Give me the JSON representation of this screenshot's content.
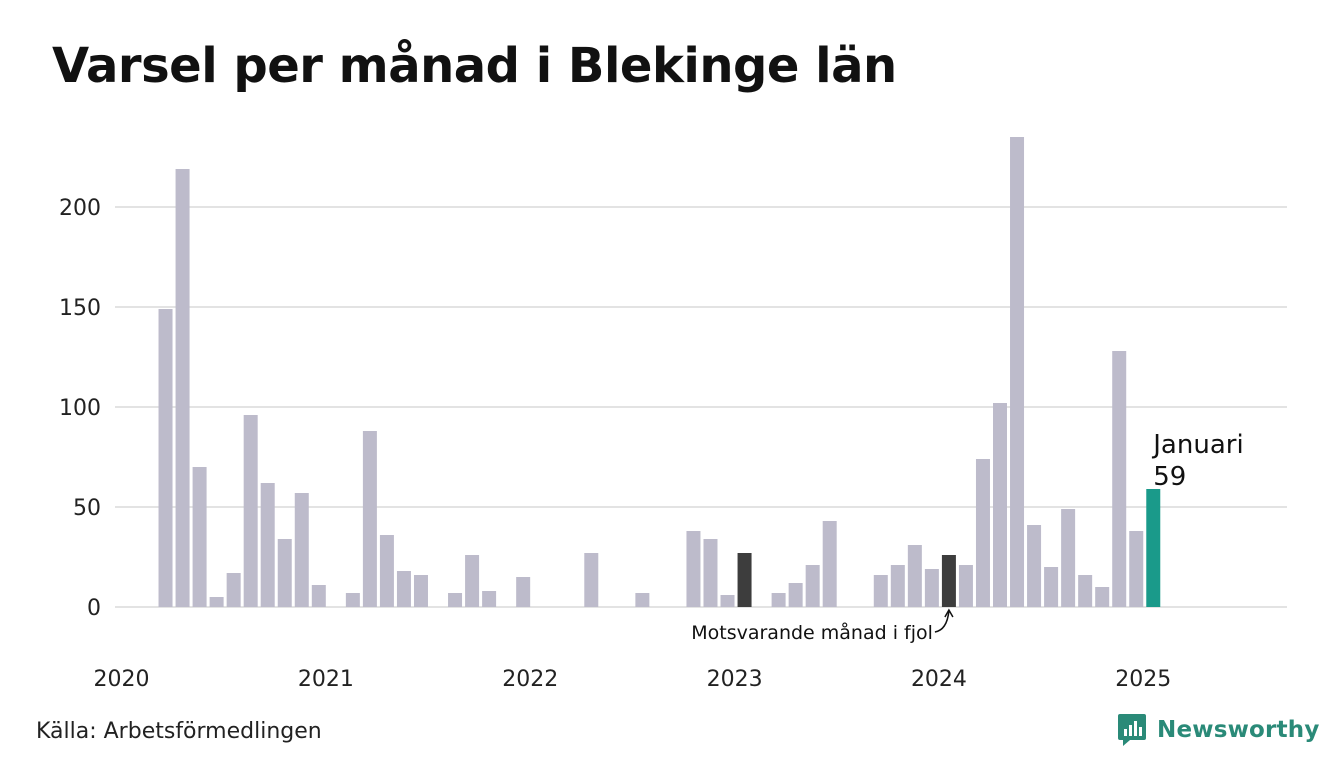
{
  "header": {
    "title": "Varsel per månad i Blekinge län"
  },
  "footer": {
    "source": "Källa: Arbetsförmedlingen",
    "brand": "Newsworthy"
  },
  "colors": {
    "default_bar": "#bdbbcb",
    "previous_year_bar": "#3d3d3d",
    "current_bar": "#1a9a8a",
    "grid": "#e3e3e3",
    "brand": "#2a8a78"
  },
  "annotations": {
    "highlight_month": "Januari",
    "highlight_value": "59",
    "previous_year_label": "Motsvarande månad i fjol"
  },
  "chart_data": {
    "type": "bar",
    "title": "Varsel per månad i Blekinge län",
    "xlabel": "",
    "ylabel": "",
    "ylim": [
      0,
      235
    ],
    "yticks": [
      0,
      50,
      100,
      150,
      200
    ],
    "xlim_months": 69,
    "year_ticks": [
      {
        "label": "2020",
        "month_index": 0
      },
      {
        "label": "2021",
        "month_index": 12
      },
      {
        "label": "2022",
        "month_index": 24
      },
      {
        "label": "2023",
        "month_index": 36
      },
      {
        "label": "2024",
        "month_index": 48
      },
      {
        "label": "2025",
        "month_index": 60
      }
    ],
    "grid": true,
    "legend": "none",
    "series": [
      {
        "start": "2020-01",
        "values": [
          0,
          149,
          219,
          70,
          5,
          17,
          96,
          62,
          34,
          57,
          11,
          0,
          7,
          88,
          36,
          18,
          16,
          0,
          7,
          26,
          8,
          0,
          15,
          0,
          0,
          0,
          27,
          0,
          0,
          7,
          0,
          0,
          38,
          34,
          6,
          27,
          0,
          7,
          12,
          21,
          43,
          0,
          0,
          16,
          21,
          31,
          19,
          26,
          21,
          74,
          102,
          235,
          41,
          20,
          49,
          16,
          10,
          128,
          38,
          59
        ]
      }
    ],
    "highlight": {
      "month_index": 59,
      "label": "Januari",
      "value": 59
    },
    "previous_year": {
      "month_index": 47,
      "value": 26,
      "label": "Motsvarande månad i fjol"
    },
    "previous_year_other": {
      "month_index": 35,
      "value": 27
    }
  }
}
